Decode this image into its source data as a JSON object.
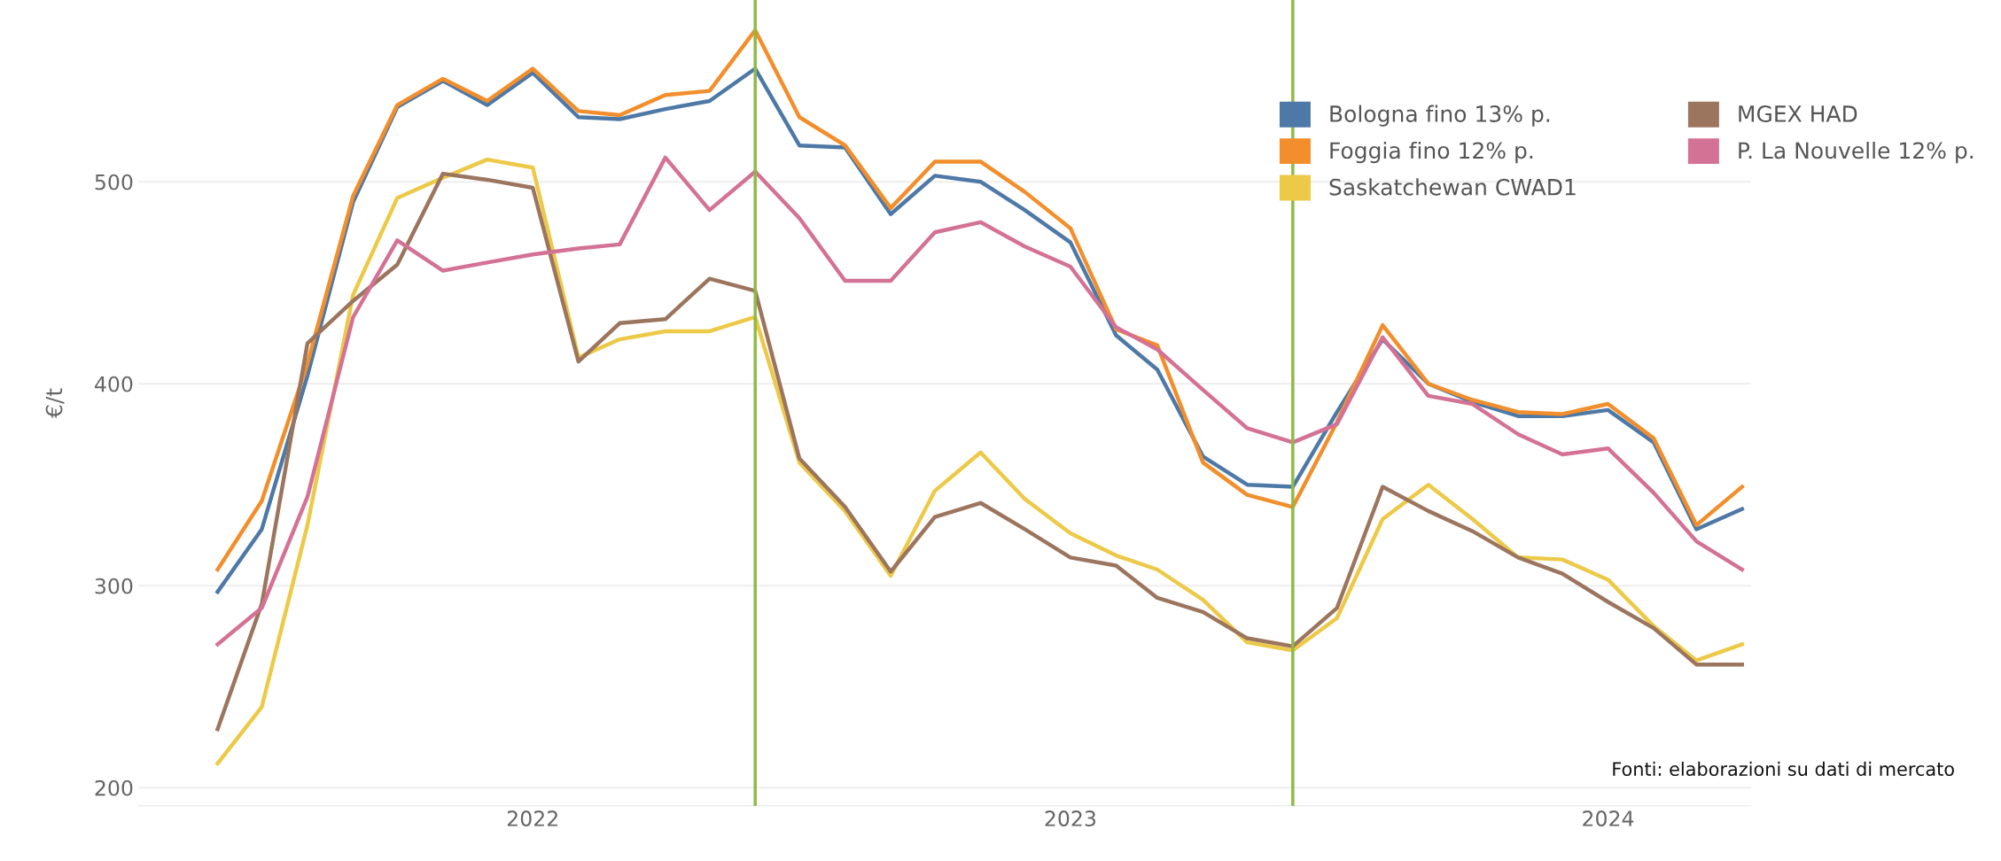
{
  "chart_data": {
    "type": "line",
    "ylabel": "€/t",
    "x": [
      "2021-06",
      "2021-07",
      "2021-08",
      "2021-09",
      "2021-10",
      "2021-11",
      "2021-12",
      "2022-01",
      "2022-02",
      "2022-03",
      "2022-04",
      "2022-05",
      "2022-06",
      "2022-07",
      "2022-08",
      "2022-09",
      "2022-10",
      "2022-11",
      "2022-12",
      "2023-01",
      "2023-02",
      "2023-03",
      "2023-04",
      "2023-05",
      "2023-06",
      "2023-07",
      "2023-08",
      "2023-09",
      "2023-10",
      "2023-11",
      "2023-12",
      "2024-01",
      "2024-02",
      "2024-03",
      "2024-04"
    ],
    "series": [
      {
        "name": "Bologna fino 13% p.",
        "color": "#4e79a7",
        "values": [
          297,
          328,
          404,
          490,
          537,
          550,
          538,
          554,
          532,
          531,
          536,
          540,
          556,
          518,
          517,
          484,
          503,
          500,
          486,
          470,
          424,
          407,
          364,
          350,
          349,
          386,
          422,
          400,
          391,
          384,
          384,
          387,
          371,
          328,
          338
        ]
      },
      {
        "name": "Foggia fino 12% p.",
        "color": "#f28e2b",
        "values": [
          308,
          342,
          410,
          493,
          538,
          551,
          540,
          556,
          535,
          533,
          543,
          545,
          575,
          532,
          518,
          487,
          510,
          510,
          495,
          477,
          427,
          419,
          361,
          345,
          339,
          381,
          429,
          400,
          392,
          386,
          385,
          390,
          373,
          330,
          349
        ]
      },
      {
        "name": "Saskatchewan CWAD1",
        "color": "#edc948",
        "values": [
          212,
          240,
          330,
          444,
          492,
          502,
          511,
          507,
          413,
          422,
          426,
          426,
          433,
          361,
          337,
          305,
          347,
          366,
          343,
          326,
          315,
          308,
          293,
          272,
          268,
          284,
          333,
          350,
          333,
          314,
          313,
          303,
          280,
          263,
          271
        ]
      },
      {
        "name": "MGEX HAD",
        "color": "#9c755f",
        "values": [
          229,
          291,
          420,
          441,
          459,
          504,
          501,
          497,
          411,
          430,
          432,
          452,
          446,
          363,
          339,
          307,
          334,
          341,
          328,
          314,
          310,
          294,
          287,
          274,
          270,
          289,
          349,
          337,
          327,
          314,
          306,
          292,
          279,
          261,
          261
        ]
      },
      {
        "name": "P. La Nouvelle 12% p.",
        "color": "#d37295",
        "values": [
          271,
          289,
          344,
          433,
          471,
          456,
          460,
          464,
          467,
          469,
          512,
          486,
          505,
          482,
          451,
          451,
          475,
          480,
          468,
          458,
          428,
          417,
          397,
          378,
          371,
          380,
          423,
          394,
          390,
          375,
          365,
          368,
          346,
          322,
          308
        ]
      }
    ],
    "xlim": [
      "2021-04-08",
      "2024-04-07"
    ],
    "xticks": [
      {
        "value": "2022-01-01",
        "label": "2022"
      },
      {
        "value": "2023-01-01",
        "label": "2023"
      },
      {
        "value": "2024-01-01",
        "label": "2024"
      }
    ],
    "ylim": [
      191,
      590
    ],
    "yticks": [
      200,
      300,
      400,
      500
    ],
    "ref_lines": [
      {
        "axis": "x",
        "value": "2022-06",
        "color": "#8cbb45"
      },
      {
        "axis": "x",
        "value": "2023-06",
        "color": "#8cbb45"
      }
    ],
    "grid": "y",
    "legend": "top right",
    "marker": "none",
    "line_style": "solid",
    "annotations": [
      "Fonti: elaborazioni su dati di mercato"
    ]
  }
}
